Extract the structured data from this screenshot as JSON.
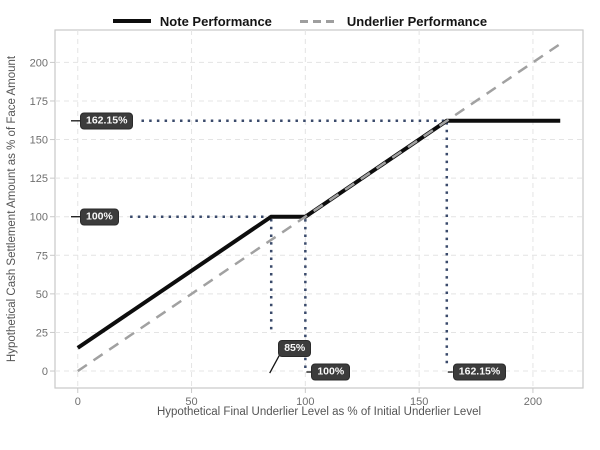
{
  "legend": {
    "items": [
      {
        "label": "Note Performance",
        "swatch": "solid-black"
      },
      {
        "label": "Underlier Performance",
        "swatch": "dashed-gray"
      }
    ]
  },
  "axes": {
    "x_title": "Hypothetical Final Underlier Level as % of Initial Underlier Level",
    "y_title": "Hypothetical Cash Settlement Amount as % of Face Amount"
  },
  "chart_data": {
    "type": "line",
    "title": "",
    "xlabel": "Hypothetical Final Underlier Level as % of Initial Underlier Level",
    "ylabel": "Hypothetical Cash Settlement Amount as % of Face Amount",
    "xlim": [
      -10,
      222
    ],
    "ylim": [
      -11,
      221
    ],
    "x_ticks": [
      0,
      50,
      100,
      150,
      200
    ],
    "y_ticks": [
      0,
      25,
      50,
      75,
      100,
      125,
      150,
      175,
      200
    ],
    "grid": true,
    "legend_position": "top-center",
    "series": [
      {
        "name": "Note Performance",
        "color": "#0d0d0d",
        "dash": "solid",
        "width": 4,
        "points": [
          [
            0,
            15
          ],
          [
            85,
            100
          ],
          [
            100,
            100
          ],
          [
            162.15,
            162.15
          ],
          [
            212,
            162.15
          ]
        ]
      },
      {
        "name": "Underlier Performance",
        "color": "#a1a1a1",
        "dash": "dashed",
        "width": 2.5,
        "points": [
          [
            0,
            0
          ],
          [
            212,
            212
          ]
        ]
      }
    ],
    "reference_lines": [
      {
        "orient": "h",
        "y": 162.15,
        "x_from": 28,
        "x_to": 162.15
      },
      {
        "orient": "h",
        "y": 100,
        "x_from": 23,
        "x_to": 85
      },
      {
        "orient": "v",
        "x": 85,
        "y_from": 27,
        "y_to": 100
      },
      {
        "orient": "v",
        "x": 100,
        "y_from": 2,
        "y_to": 100
      },
      {
        "orient": "v",
        "x": 162.15,
        "y_from": 5,
        "y_to": 162.15
      }
    ],
    "ref_color": "#3a4a6b",
    "annotations": [
      {
        "text": "162.15%",
        "axis": "y",
        "value": 162.15
      },
      {
        "text": "100%",
        "axis": "y",
        "value": 100
      },
      {
        "text": "85%",
        "axis": "x",
        "value": 85,
        "lifted": true
      },
      {
        "text": "100%",
        "axis": "x",
        "value": 100
      },
      {
        "text": "162.15%",
        "axis": "x",
        "value": 162.15
      }
    ],
    "annotation_style": {
      "bg": "#3c3c3c",
      "fg": "#fafafa"
    },
    "colors": {
      "grid": "#e4e4e4",
      "panel_border": "#c9c9c9",
      "tick_text": "#6f6f6f",
      "axis_title": "#545454",
      "leader": "#141414"
    }
  }
}
